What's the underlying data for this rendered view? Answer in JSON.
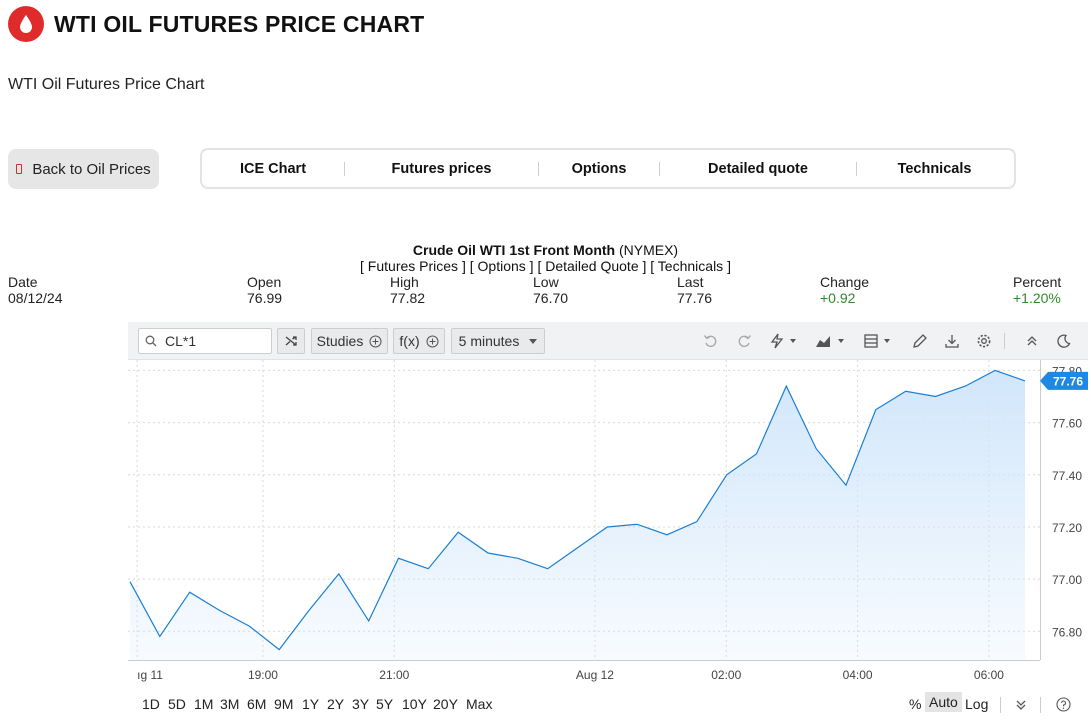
{
  "header": {
    "title": "WTI OIL FUTURES PRICE CHART",
    "subtitle": "WTI Oil Futures Price Chart"
  },
  "back_button": {
    "label": "Back to Oil Prices"
  },
  "tabs": [
    {
      "label": "ICE Chart"
    },
    {
      "label": "Futures prices"
    },
    {
      "label": "Options"
    },
    {
      "label": "Detailed quote"
    },
    {
      "label": "Technicals"
    }
  ],
  "quote": {
    "contract": "Crude Oil WTI 1st Front Month",
    "exchange": "(NYMEX)",
    "links": [
      "[ Futures Prices ]",
      "[ Options ]",
      "[ Detailed Quote ]",
      "[ Technicals ]"
    ],
    "fields": [
      {
        "label": "Date",
        "value": "08/12/24"
      },
      {
        "label": "Open",
        "value": "76.99"
      },
      {
        "label": "High",
        "value": "77.82"
      },
      {
        "label": "Low",
        "value": "76.70"
      },
      {
        "label": "Last",
        "value": "77.76"
      },
      {
        "label": "Change",
        "value": "+0.92"
      },
      {
        "label": "Percent",
        "value": "+1.20%"
      }
    ]
  },
  "toolbar": {
    "symbol": "CL*1",
    "studies_label": "Studies",
    "fx_label": "f(x)",
    "interval_label": "5 minutes"
  },
  "range_buttons": [
    "1D",
    "5D",
    "1M",
    "3M",
    "6M",
    "9M",
    "1Y",
    "2Y",
    "3Y",
    "5Y",
    "10Y",
    "20Y",
    "Max"
  ],
  "scale_options": {
    "percent": "%",
    "auto": "Auto",
    "log": "Log"
  },
  "colors": {
    "accent": "#1e88e5",
    "line": "#1a7fd4",
    "fill": "#cfe5fb",
    "brand": "#e02b2b",
    "positive": "#2e8b2e"
  },
  "chart_data": {
    "type": "area",
    "series": [
      {
        "last_value": "77.76",
        "x": [
          "Aug 11 ~16:00",
          "16:30",
          "17:00",
          "17:30",
          "18:00",
          "18:30",
          "19:00",
          "19:30",
          "20:00",
          "20:30",
          "21:00",
          "21:30",
          "22:00",
          "22:30",
          "23:00",
          "23:30",
          "Aug 12 00:00",
          "00:30",
          "01:00",
          "01:30",
          "02:00",
          "02:30",
          "03:00",
          "03:30",
          "04:00",
          "04:30",
          "05:00",
          "05:30",
          "06:00",
          "06:30",
          "06:55"
        ],
        "values": [
          76.99,
          76.78,
          76.95,
          76.88,
          76.82,
          76.73,
          76.88,
          77.02,
          76.84,
          77.08,
          77.04,
          77.18,
          77.1,
          77.08,
          77.04,
          77.12,
          77.2,
          77.21,
          77.17,
          77.22,
          77.4,
          77.48,
          77.74,
          77.5,
          77.36,
          77.65,
          77.72,
          77.7,
          77.74,
          77.8,
          77.76
        ]
      }
    ],
    "x_ticks": [
      "ıg 11",
      "19:00",
      "21:00",
      "Aug 12",
      "02:00",
      "04:00",
      "06:00"
    ],
    "y_ticks": [
      "77.80",
      "77.60",
      "77.40",
      "77.20",
      "77.00",
      "76.80"
    ],
    "ylim": [
      76.69,
      77.84
    ],
    "grid": true
  }
}
